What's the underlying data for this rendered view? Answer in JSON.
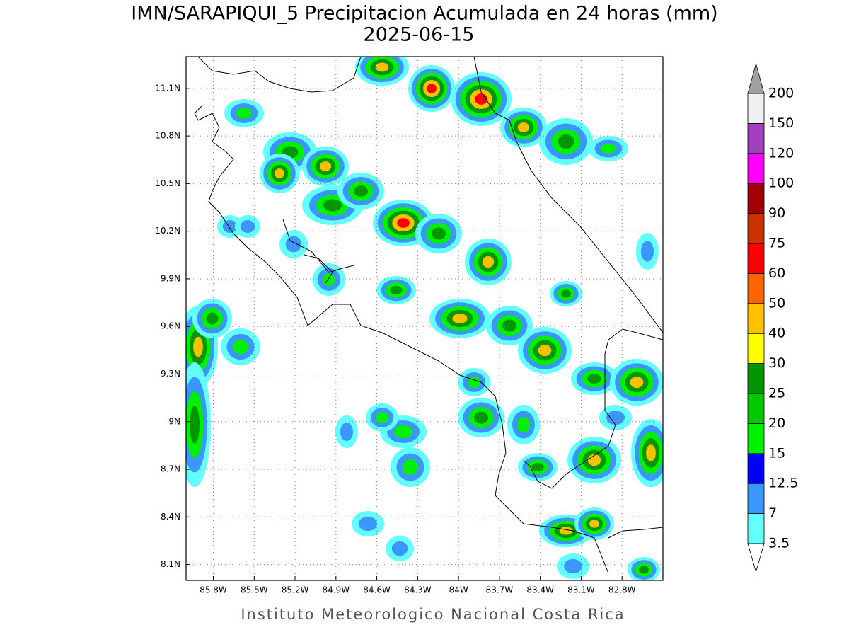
{
  "title": "IMN/SARAPIQUI_5 Precipitacion Acumulada en 24 horas (mm)",
  "subtitle": "2025-06-15",
  "map": {
    "xlim": [
      -86.0,
      -82.5
    ],
    "ylim": [
      8.0,
      11.3
    ],
    "xticks": [
      {
        "value": -85.8,
        "label": "85.8W"
      },
      {
        "value": -85.5,
        "label": "85.5W"
      },
      {
        "value": -85.2,
        "label": "85.2W"
      },
      {
        "value": -84.9,
        "label": "84.9W"
      },
      {
        "value": -84.6,
        "label": "84.6W"
      },
      {
        "value": -84.3,
        "label": "84.3W"
      },
      {
        "value": -84.0,
        "label": "84W"
      },
      {
        "value": -83.7,
        "label": "83.7W"
      },
      {
        "value": -83.4,
        "label": "83.4W"
      },
      {
        "value": -83.1,
        "label": "83.1W"
      },
      {
        "value": -82.8,
        "label": "82.8W"
      }
    ],
    "yticks": [
      {
        "value": 8.1,
        "label": "8.1N"
      },
      {
        "value": 8.4,
        "label": "8.4N"
      },
      {
        "value": 8.7,
        "label": "8.7N"
      },
      {
        "value": 9.0,
        "label": "9N"
      },
      {
        "value": 9.3,
        "label": "9.3N"
      },
      {
        "value": 9.6,
        "label": "9.6N"
      },
      {
        "value": 9.9,
        "label": "9.9N"
      },
      {
        "value": 10.2,
        "label": "10.2N"
      },
      {
        "value": 10.5,
        "label": "10.5N"
      },
      {
        "value": 10.8,
        "label": "10.8N"
      },
      {
        "value": 11.1,
        "label": "11.1N"
      }
    ],
    "grid": true
  },
  "colorbar": {
    "levels": [
      3.5,
      7,
      12.5,
      15,
      20,
      25,
      30,
      40,
      50,
      60,
      75,
      90,
      100,
      120,
      150,
      200
    ],
    "colors": [
      "#ffffff",
      "#64ffff",
      "#3c96ff",
      "#0000ff",
      "#00f000",
      "#00c800",
      "#009600",
      "#ffff00",
      "#ffc000",
      "#ff6400",
      "#ff0000",
      "#c83200",
      "#a00000",
      "#ff00ff",
      "#a040c0",
      "#f0f0f0",
      "#a0a0a0"
    ]
  },
  "footer": "Instituto Meteorologico Nacional Costa Rica"
}
